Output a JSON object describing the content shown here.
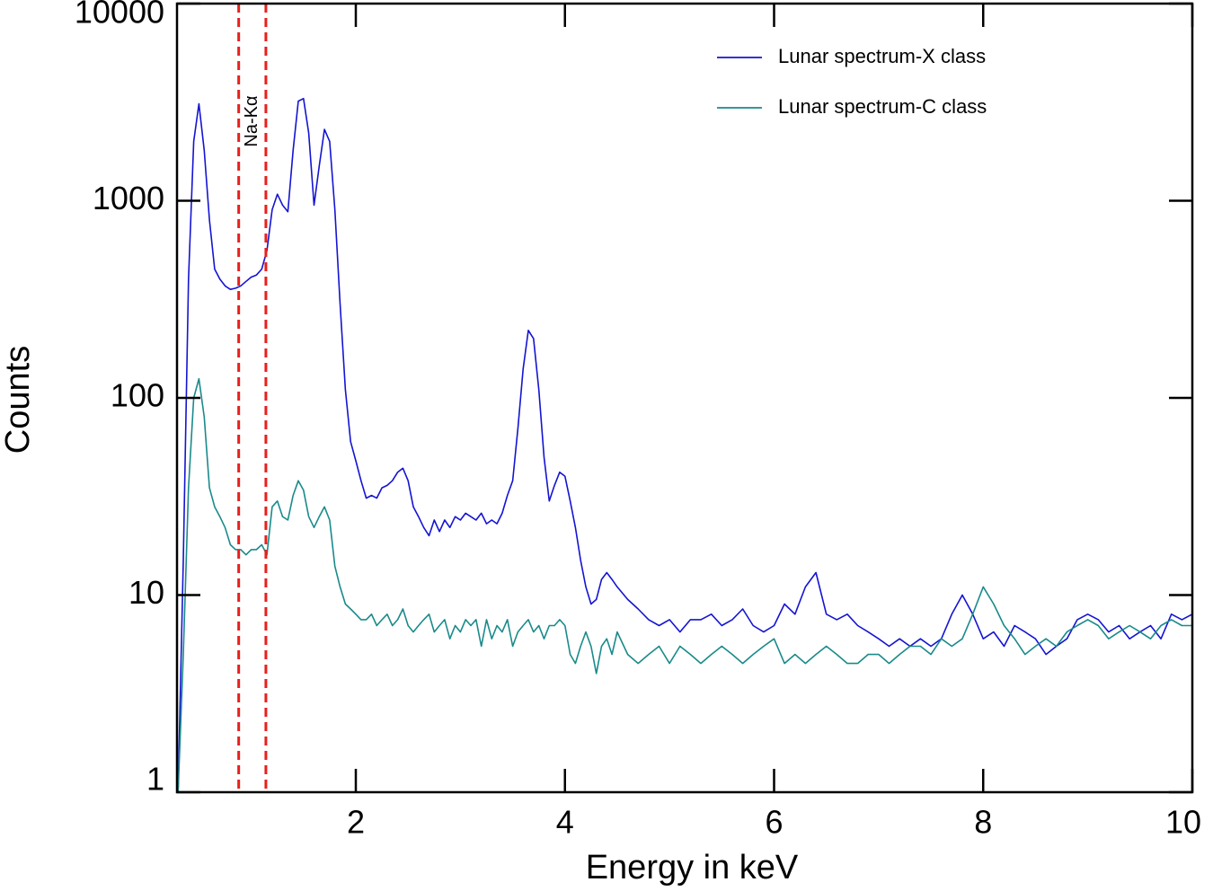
{
  "chart_data": {
    "type": "line",
    "xlabel": "Energy in keV",
    "ylabel": "Counts",
    "ylog": true,
    "xlim": [
      0.29,
      10
    ],
    "ylim": [
      1,
      10000
    ],
    "xticks": [
      2,
      4,
      6,
      8,
      10
    ],
    "yticks": [
      1,
      10,
      100,
      1000,
      10000
    ],
    "vlines": [
      0.88,
      1.14
    ],
    "vline_color": "#e8201c",
    "annotation": "Na-Kα",
    "legend": "upper right",
    "x": [
      0.3,
      0.35,
      0.4,
      0.45,
      0.5,
      0.55,
      0.6,
      0.65,
      0.7,
      0.75,
      0.8,
      0.85,
      0.9,
      0.95,
      1,
      1.05,
      1.1,
      1.15,
      1.2,
      1.25,
      1.3,
      1.35,
      1.4,
      1.45,
      1.5,
      1.55,
      1.6,
      1.65,
      1.7,
      1.75,
      1.8,
      1.85,
      1.9,
      1.95,
      2,
      2.05,
      2.1,
      2.15,
      2.2,
      2.25,
      2.3,
      2.35,
      2.4,
      2.45,
      2.5,
      2.55,
      2.6,
      2.65,
      2.7,
      2.75,
      2.8,
      2.85,
      2.9,
      2.95,
      3,
      3.05,
      3.1,
      3.15,
      3.2,
      3.25,
      3.3,
      3.35,
      3.4,
      3.45,
      3.5,
      3.55,
      3.6,
      3.65,
      3.7,
      3.75,
      3.8,
      3.85,
      3.9,
      3.95,
      4,
      4.05,
      4.1,
      4.15,
      4.2,
      4.25,
      4.3,
      4.35,
      4.4,
      4.45,
      4.5,
      4.6,
      4.7,
      4.8,
      4.9,
      5,
      5.1,
      5.2,
      5.3,
      5.4,
      5.5,
      5.6,
      5.7,
      5.8,
      5.9,
      6,
      6.1,
      6.2,
      6.3,
      6.4,
      6.5,
      6.6,
      6.7,
      6.8,
      6.9,
      7,
      7.1,
      7.2,
      7.3,
      7.4,
      7.5,
      7.6,
      7.7,
      7.8,
      7.9,
      8,
      8.1,
      8.2,
      8.3,
      8.4,
      8.5,
      8.6,
      8.7,
      8.8,
      8.9,
      9,
      9.1,
      9.2,
      9.3,
      9.4,
      9.5,
      9.6,
      9.7,
      9.8,
      9.9,
      10
    ],
    "series": [
      {
        "name": "Lunar spectrum-X class",
        "color": "#1414d2",
        "values": [
          1,
          15,
          400,
          2000,
          3100,
          1800,
          800,
          450,
          400,
          370,
          355,
          360,
          370,
          390,
          410,
          420,
          450,
          560,
          900,
          1080,
          950,
          880,
          1800,
          3200,
          3300,
          2200,
          950,
          1500,
          2300,
          2000,
          900,
          300,
          110,
          60,
          48,
          38,
          31,
          32,
          31,
          35,
          36,
          38,
          42,
          44,
          38,
          28,
          25,
          22,
          20,
          24,
          21,
          24,
          22,
          25,
          24,
          26,
          25,
          24,
          26,
          23,
          24,
          23,
          26,
          32,
          38,
          70,
          140,
          220,
          200,
          110,
          50,
          30,
          36,
          42,
          40,
          30,
          22,
          15,
          11,
          9,
          9.5,
          12,
          13,
          12,
          11,
          9.5,
          8.5,
          7.5,
          7,
          7.5,
          6.5,
          7.5,
          7.5,
          8,
          7,
          7.5,
          8.5,
          7,
          6.5,
          7,
          9,
          8,
          11,
          13,
          8,
          7.5,
          8,
          7,
          6.5,
          6,
          5.5,
          6,
          5.5,
          6,
          5.5,
          6,
          8,
          10,
          8,
          6,
          6.5,
          5.5,
          7,
          6.5,
          6,
          5,
          5.5,
          6,
          7.5,
          8,
          7.5,
          6.5,
          7,
          6,
          6.5,
          7,
          6,
          8,
          7.5,
          8
        ]
      },
      {
        "name": "Lunar spectrum-C class",
        "color": "#1a8a8a",
        "values": [
          1,
          5,
          35,
          100,
          125,
          80,
          35,
          28,
          25,
          22,
          18,
          17,
          17,
          16,
          17,
          17,
          18,
          16,
          28,
          30,
          25,
          24,
          32,
          38,
          34,
          25,
          22,
          25,
          28,
          24,
          14,
          11,
          9,
          8.5,
          8,
          7.5,
          7.5,
          8,
          7,
          7.5,
          8,
          7,
          7.5,
          8.5,
          7,
          6.5,
          7,
          7.5,
          8,
          6.5,
          7,
          7.5,
          6,
          7,
          6.5,
          7.5,
          7,
          7.5,
          5.5,
          7.5,
          6,
          7,
          6.5,
          7.5,
          5.5,
          6.5,
          7,
          7.5,
          6.5,
          7,
          6,
          7,
          7,
          7.5,
          7,
          5,
          4.5,
          5.5,
          6.5,
          5.5,
          4,
          5.5,
          6,
          5,
          6.5,
          5,
          4.5,
          5,
          5.5,
          4.5,
          5.5,
          5,
          4.5,
          5,
          5.5,
          5,
          4.5,
          5,
          5.5,
          6,
          4.5,
          5,
          4.5,
          5,
          5.5,
          5,
          4.5,
          4.5,
          5,
          5,
          4.5,
          5,
          5.5,
          5.5,
          5,
          6,
          5.5,
          6,
          8,
          11,
          9,
          7,
          6,
          5,
          5.5,
          6,
          5.5,
          6.5,
          7,
          7.5,
          7,
          6,
          6.5,
          7,
          6.5,
          6,
          7,
          7.5,
          7,
          7
        ]
      }
    ]
  }
}
